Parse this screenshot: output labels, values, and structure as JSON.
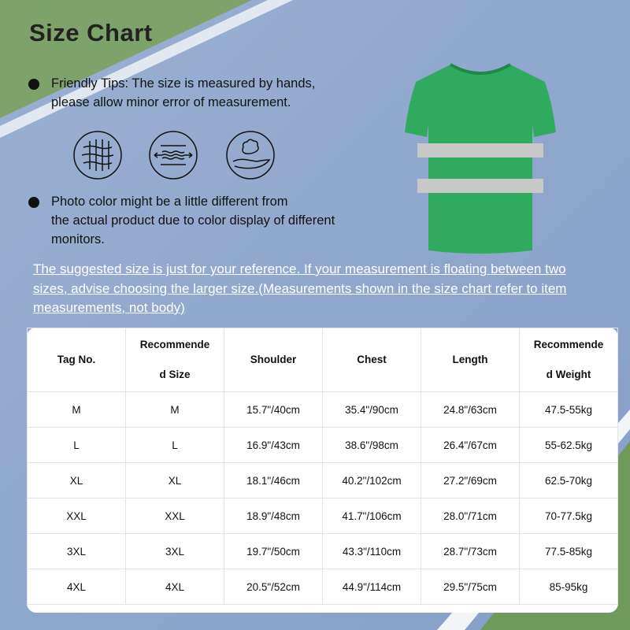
{
  "title": "Size Chart",
  "tips": [
    {
      "lines": [
        "Friendly Tips: The size is measured by hands,",
        "please allow minor error of measurement."
      ]
    },
    {
      "lines": [
        "Photo color might be a little different from",
        "the actual product due to color display of different",
        "monitors."
      ]
    }
  ],
  "icons": [
    "mesh-fabric-icon",
    "stretch-fabric-icon",
    "soft-cotton-hand-icon"
  ],
  "note": "The suggested size is just for your reference. If your measurement is floating between two sizes, advise choosing the larger size.(Measurements shown in the size chart refer to item measurements, not body)",
  "product": {
    "color": "#2faa5e",
    "stripe_color": "#c8c8c8"
  },
  "table": {
    "headers": [
      [
        "Tag No."
      ],
      [
        "Recommende",
        "d Size"
      ],
      [
        "Shoulder"
      ],
      [
        "Chest"
      ],
      [
        "Length"
      ],
      [
        "Recommende",
        "d Weight"
      ]
    ],
    "rows": [
      [
        "M",
        "M",
        "15.7\"/40cm",
        "35.4\"/90cm",
        "24.8\"/63cm",
        "47.5-55kg"
      ],
      [
        "L",
        "L",
        "16.9\"/43cm",
        "38.6\"/98cm",
        "26.4\"/67cm",
        "55-62.5kg"
      ],
      [
        "XL",
        "XL",
        "18.1\"/46cm",
        "40.2\"/102cm",
        "27.2\"/69cm",
        "62.5-70kg"
      ],
      [
        "XXL",
        "XXL",
        "18.9\"/48cm",
        "41.7\"/106cm",
        "28.0\"/71cm",
        "70-77.5kg"
      ],
      [
        "3XL",
        "3XL",
        "19.7\"/50cm",
        "43.3\"/110cm",
        "28.7\"/73cm",
        "77.5-85kg"
      ],
      [
        "4XL",
        "4XL",
        "20.5\"/52cm",
        "44.9\"/114cm",
        "29.5\"/75cm",
        "85-95kg"
      ]
    ]
  }
}
